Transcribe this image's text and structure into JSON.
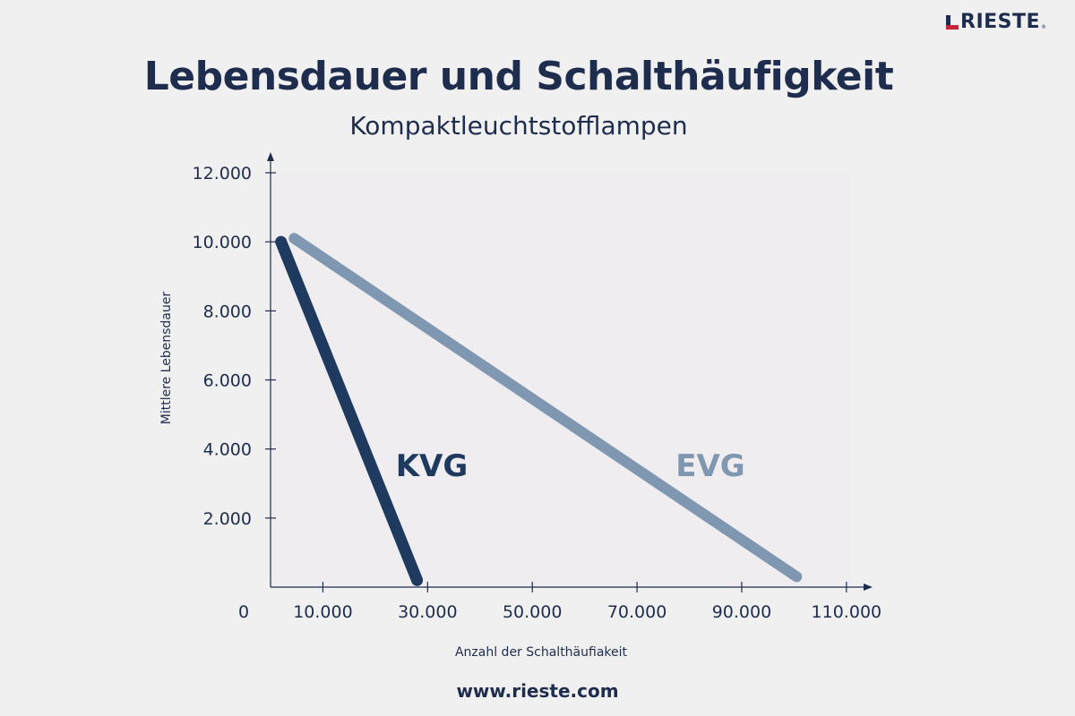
{
  "brand": {
    "name": "RIESTE",
    "tm": "®",
    "url": "www.rieste.com"
  },
  "colors": {
    "primary": "#1e3a5f",
    "secondary": "#7f97b0",
    "text": "#1e2d4d",
    "background": "#f1f0f1"
  },
  "chart_data": {
    "type": "line",
    "title": "Lebensdauer und Schalthäufigkeit",
    "subtitle": "Kompaktleuchtstofflampen",
    "xlabel": "Anzahl der Schalthäufiakeit",
    "ylabel": "Mittlere Lebensdauer",
    "xlim": [
      0,
      110000
    ],
    "ylim": [
      0,
      12000
    ],
    "x_ticks": [
      0,
      10000,
      30000,
      50000,
      70000,
      90000,
      110000
    ],
    "x_tick_labels": [
      "0",
      "10.000",
      "30.000",
      "50.000",
      "70.000",
      "90.000",
      "110.000"
    ],
    "y_ticks": [
      2000,
      4000,
      6000,
      8000,
      10000,
      12000
    ],
    "y_tick_labels": [
      "2.000",
      "4.000",
      "6.000",
      "8.000",
      "10.000",
      "12.000"
    ],
    "grid": false,
    "series": [
      {
        "name": "KVG",
        "color": "#1e3a5f",
        "x": [
          2000,
          28000
        ],
        "y": [
          10000,
          200
        ]
      },
      {
        "name": "EVG",
        "color": "#7f97b0",
        "x": [
          4500,
          100500
        ],
        "y": [
          10100,
          300
        ]
      }
    ]
  }
}
